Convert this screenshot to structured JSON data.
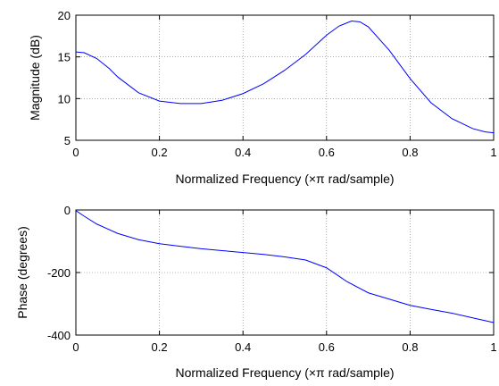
{
  "chart_data": [
    {
      "type": "line",
      "xlabel": "Normalized Frequency  (×π rad/sample)",
      "ylabel": "Magnitude (dB)",
      "xlim": [
        0,
        1
      ],
      "ylim": [
        5,
        20
      ],
      "xticks": [
        "0",
        "0.2",
        "0.4",
        "0.6",
        "0.8",
        "1"
      ],
      "yticks": [
        "5",
        "10",
        "15",
        "20"
      ],
      "grid": true,
      "series": [
        {
          "color": "#0000ff",
          "x": [
            0,
            0.02,
            0.05,
            0.08,
            0.1,
            0.15,
            0.2,
            0.25,
            0.3,
            0.35,
            0.4,
            0.45,
            0.5,
            0.55,
            0.6,
            0.63,
            0.66,
            0.68,
            0.7,
            0.75,
            0.8,
            0.85,
            0.9,
            0.95,
            0.98,
            1
          ],
          "y": [
            15.6,
            15.5,
            14.8,
            13.6,
            12.6,
            10.7,
            9.7,
            9.4,
            9.4,
            9.8,
            10.6,
            11.8,
            13.4,
            15.3,
            17.6,
            18.7,
            19.3,
            19.2,
            18.6,
            15.8,
            12.4,
            9.5,
            7.6,
            6.4,
            6.0,
            5.9
          ]
        }
      ]
    },
    {
      "type": "line",
      "xlabel": "Normalized Frequency  (×π rad/sample)",
      "ylabel": "Phase (degrees)",
      "xlim": [
        0,
        1
      ],
      "ylim": [
        -400,
        0
      ],
      "xticks": [
        "0",
        "0.2",
        "0.4",
        "0.6",
        "0.8",
        "1"
      ],
      "yticks": [
        "-400",
        "-200",
        "0"
      ],
      "grid": true,
      "series": [
        {
          "color": "#0000ff",
          "x": [
            0,
            0.02,
            0.05,
            0.1,
            0.15,
            0.2,
            0.25,
            0.3,
            0.35,
            0.4,
            0.45,
            0.5,
            0.55,
            0.6,
            0.65,
            0.7,
            0.75,
            0.8,
            0.85,
            0.9,
            0.95,
            1
          ],
          "y": [
            -2,
            -20,
            -45,
            -75,
            -95,
            -108,
            -116,
            -124,
            -130,
            -136,
            -142,
            -150,
            -160,
            -185,
            -230,
            -265,
            -285,
            -305,
            -318,
            -330,
            -345,
            -360
          ]
        }
      ]
    }
  ]
}
